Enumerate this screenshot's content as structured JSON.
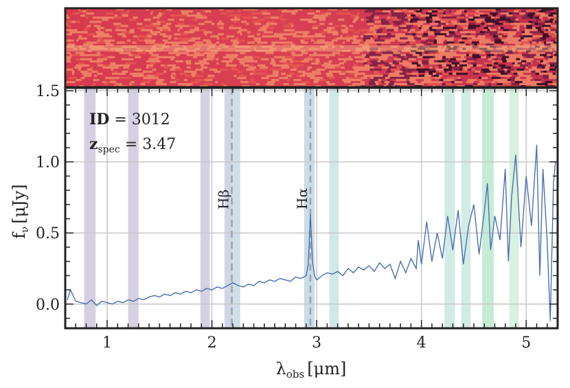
{
  "figure": {
    "id_label": "ID",
    "id_value": "3012",
    "z_label": "z",
    "z_sub": "spec",
    "z_value": "3.47",
    "line_labels": [
      {
        "text": "Hβ",
        "x": 2.19
      },
      {
        "text": "Hα",
        "x": 2.94
      }
    ]
  },
  "chart_data": {
    "type": "line",
    "xlabel": "λ",
    "xlabel_sub": "obs",
    "xlabel_unit": "[μm]",
    "ylabel": "f",
    "ylabel_sub": "ν",
    "ylabel_unit": "[μJy]",
    "xlim": [
      0.6,
      5.3
    ],
    "ylim": [
      -0.17,
      1.52
    ],
    "x_ticks": [
      1,
      2,
      3,
      4,
      5
    ],
    "x_tick_labels": [
      "1",
      "2",
      "3",
      "4",
      "5"
    ],
    "y_ticks": [
      0.0,
      0.5,
      1.0,
      1.5
    ],
    "y_tick_labels": [
      "0.0",
      "0.5",
      "1.0",
      "1.5"
    ],
    "grid": true,
    "line_color": "#4a6fb0",
    "emission_markers": [
      2.19,
      2.94
    ],
    "shaded_bands": [
      {
        "x0": 0.78,
        "x1": 0.89,
        "color": "#b3aacb"
      },
      {
        "x0": 1.2,
        "x1": 1.3,
        "color": "#b3aacb"
      },
      {
        "x0": 1.89,
        "x1": 1.98,
        "color": "#b3aacb"
      },
      {
        "x0": 2.12,
        "x1": 2.2,
        "color": "#a8b4cf"
      },
      {
        "x0": 2.2,
        "x1": 2.27,
        "color": "#a9c2d4"
      },
      {
        "x0": 2.88,
        "x1": 2.98,
        "color": "#9fbfcf"
      },
      {
        "x0": 3.12,
        "x1": 3.21,
        "color": "#a9d6d3"
      },
      {
        "x0": 4.22,
        "x1": 4.32,
        "color": "#abdccf"
      },
      {
        "x0": 4.38,
        "x1": 4.47,
        "color": "#abdccf"
      },
      {
        "x0": 4.58,
        "x1": 4.69,
        "color": "#98dcb5"
      },
      {
        "x0": 4.84,
        "x1": 4.93,
        "color": "#b9e6c4"
      }
    ],
    "series": [
      {
        "x": [
          0.62,
          0.65,
          0.7,
          0.75,
          0.8,
          0.85,
          0.9,
          0.95,
          1.0,
          1.05,
          1.1,
          1.15,
          1.2,
          1.25,
          1.3,
          1.35,
          1.4,
          1.45,
          1.5,
          1.55,
          1.6,
          1.65,
          1.7,
          1.75,
          1.8,
          1.85,
          1.9,
          1.95,
          2.0,
          2.05,
          2.1,
          2.15,
          2.2,
          2.25,
          2.3,
          2.35,
          2.4,
          2.45,
          2.5,
          2.55,
          2.6,
          2.65,
          2.7,
          2.75,
          2.8,
          2.85,
          2.9,
          2.92,
          2.94,
          2.96,
          2.98,
          3.0,
          3.05,
          3.1,
          3.15,
          3.2,
          3.25,
          3.3,
          3.35,
          3.4,
          3.45,
          3.5,
          3.55,
          3.6,
          3.65,
          3.7,
          3.75,
          3.8,
          3.85,
          3.9,
          3.95,
          3.97,
          4.0,
          4.05,
          4.1,
          4.15,
          4.2,
          4.25,
          4.3,
          4.35,
          4.4,
          4.45,
          4.5,
          4.55,
          4.6,
          4.63,
          4.66,
          4.7,
          4.75,
          4.8,
          4.83,
          4.86,
          4.9,
          4.95,
          5.0,
          5.05,
          5.1,
          5.13,
          5.16,
          5.2,
          5.23,
          5.26,
          5.28
        ],
        "y": [
          0.03,
          0.1,
          0.02,
          0.01,
          0.0,
          0.03,
          -0.01,
          0.02,
          0.01,
          0.0,
          0.02,
          0.01,
          0.03,
          0.02,
          0.04,
          0.03,
          0.05,
          0.06,
          0.05,
          0.07,
          0.06,
          0.08,
          0.07,
          0.09,
          0.08,
          0.1,
          0.09,
          0.11,
          0.1,
          0.12,
          0.11,
          0.13,
          0.15,
          0.13,
          0.12,
          0.14,
          0.13,
          0.16,
          0.15,
          0.17,
          0.16,
          0.18,
          0.17,
          0.16,
          0.19,
          0.18,
          0.2,
          0.28,
          0.63,
          0.3,
          0.2,
          0.17,
          0.2,
          0.22,
          0.21,
          0.23,
          0.2,
          0.25,
          0.22,
          0.26,
          0.24,
          0.27,
          0.23,
          0.29,
          0.25,
          0.28,
          0.18,
          0.3,
          0.22,
          0.32,
          0.25,
          0.45,
          0.28,
          0.58,
          0.3,
          0.5,
          0.32,
          0.62,
          0.38,
          0.66,
          0.28,
          0.55,
          0.7,
          0.35,
          0.65,
          0.85,
          0.38,
          0.62,
          0.45,
          0.95,
          0.3,
          0.75,
          1.05,
          0.4,
          0.9,
          0.55,
          1.12,
          0.2,
          0.95,
          0.45,
          -0.12,
          0.85,
          1.0
        ]
      }
    ]
  }
}
